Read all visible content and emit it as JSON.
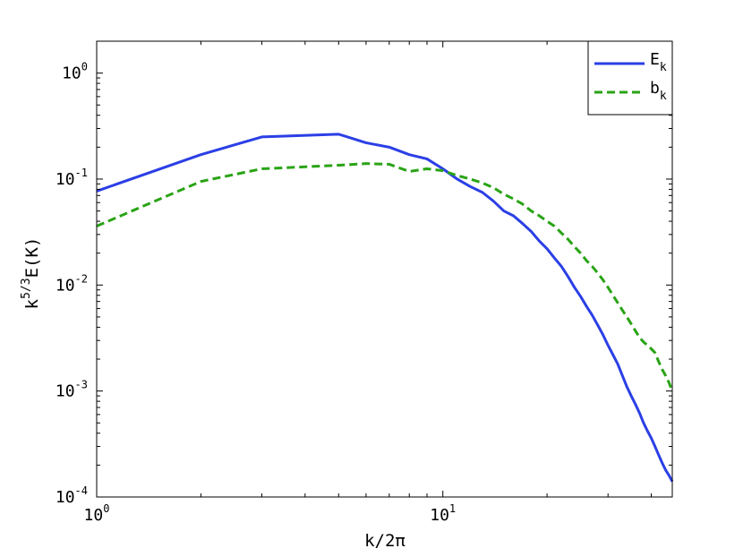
{
  "chart_data": {
    "type": "line",
    "xlabel": "k/2π",
    "ylabel": "k^{5/3}E(K)",
    "xscale": "log",
    "yscale": "log",
    "xlim": [
      1,
      46
    ],
    "ylim": [
      0.0001,
      2
    ],
    "grid": false,
    "legend_position": "top-right",
    "x_ticks": [
      {
        "value": 1,
        "base": "10",
        "exp": "0"
      },
      {
        "value": 10,
        "base": "10",
        "exp": "1"
      }
    ],
    "y_ticks": [
      {
        "value": 1,
        "base": "10",
        "exp": "0"
      },
      {
        "value": 0.1,
        "base": "10",
        "exp": "-1"
      },
      {
        "value": 0.01,
        "base": "10",
        "exp": "-2"
      },
      {
        "value": 0.001,
        "base": "10",
        "exp": "-3"
      },
      {
        "value": 0.0001,
        "base": "10",
        "exp": "-4"
      }
    ],
    "series": [
      {
        "name": "E",
        "sub": "k",
        "color": "#2b3fe6",
        "style": "solid",
        "points": [
          [
            1,
            0.077
          ],
          [
            2,
            0.17
          ],
          [
            3,
            0.25
          ],
          [
            5,
            0.265
          ],
          [
            6,
            0.22
          ],
          [
            7,
            0.2
          ],
          [
            8,
            0.17
          ],
          [
            9,
            0.155
          ],
          [
            10,
            0.125
          ],
          [
            11,
            0.1
          ],
          [
            12,
            0.085
          ],
          [
            13,
            0.075
          ],
          [
            14,
            0.062
          ],
          [
            15,
            0.05
          ],
          [
            16,
            0.045
          ],
          [
            17,
            0.038
          ],
          [
            18,
            0.032
          ],
          [
            19,
            0.026
          ],
          [
            20,
            0.022
          ],
          [
            21,
            0.018
          ],
          [
            22,
            0.015
          ],
          [
            23,
            0.012
          ],
          [
            24,
            0.0095
          ],
          [
            25,
            0.0078
          ],
          [
            26,
            0.0063
          ],
          [
            27,
            0.0052
          ],
          [
            28,
            0.0042
          ],
          [
            29,
            0.0034
          ],
          [
            30,
            0.0027
          ],
          [
            31,
            0.0022
          ],
          [
            32,
            0.0018
          ],
          [
            33,
            0.0014
          ],
          [
            34,
            0.0011
          ],
          [
            35,
            0.0009
          ],
          [
            36,
            0.00075
          ],
          [
            37,
            0.00062
          ],
          [
            38,
            0.0005
          ],
          [
            39,
            0.00042
          ],
          [
            40,
            0.00036
          ],
          [
            41,
            0.0003
          ],
          [
            42,
            0.00025
          ],
          [
            43,
            0.00021
          ],
          [
            44,
            0.00018
          ],
          [
            45,
            0.00016
          ],
          [
            46,
            0.00014
          ]
        ]
      },
      {
        "name": "b",
        "sub": "k",
        "color": "#2aa316",
        "style": "dashed",
        "points": [
          [
            1,
            0.036
          ],
          [
            2,
            0.095
          ],
          [
            3,
            0.125
          ],
          [
            5,
            0.135
          ],
          [
            6,
            0.14
          ],
          [
            7,
            0.138
          ],
          [
            8,
            0.118
          ],
          [
            9,
            0.125
          ],
          [
            10,
            0.12
          ],
          [
            11,
            0.108
          ],
          [
            12,
            0.1
          ],
          [
            13,
            0.092
          ],
          [
            14,
            0.083
          ],
          [
            15,
            0.072
          ],
          [
            16,
            0.065
          ],
          [
            17,
            0.058
          ],
          [
            18,
            0.05
          ],
          [
            19,
            0.045
          ],
          [
            20,
            0.04
          ],
          [
            21,
            0.036
          ],
          [
            22,
            0.031
          ],
          [
            23,
            0.027
          ],
          [
            24,
            0.023
          ],
          [
            25,
            0.02
          ],
          [
            26,
            0.017
          ],
          [
            27,
            0.015
          ],
          [
            28,
            0.013
          ],
          [
            29,
            0.0112
          ],
          [
            30,
            0.0095
          ],
          [
            31,
            0.008
          ],
          [
            32,
            0.0068
          ],
          [
            33,
            0.0058
          ],
          [
            34,
            0.005
          ],
          [
            35,
            0.0043
          ],
          [
            36,
            0.0037
          ],
          [
            37,
            0.0032
          ],
          [
            38,
            0.0029
          ],
          [
            39,
            0.0027
          ],
          [
            40,
            0.0025
          ],
          [
            41,
            0.0023
          ],
          [
            42,
            0.0019
          ],
          [
            43,
            0.0016
          ],
          [
            44,
            0.0014
          ],
          [
            45,
            0.0012
          ],
          [
            46,
            0.001
          ]
        ]
      }
    ]
  }
}
